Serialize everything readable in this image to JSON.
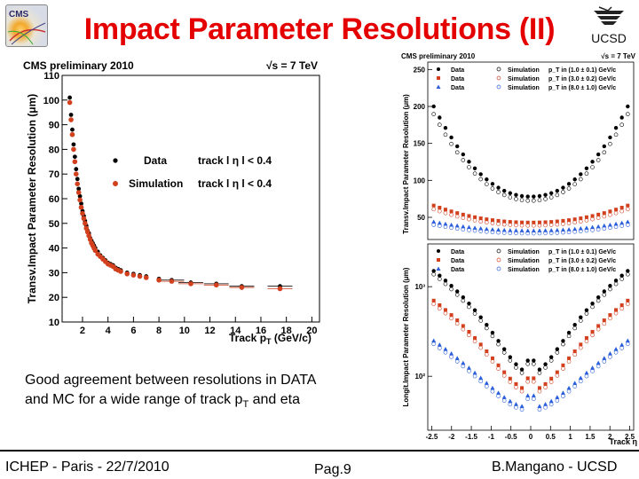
{
  "slide": {
    "title": "Impact Parameter Resolutions (II)",
    "caption_line1": "Good agreement between resolutions in DATA",
    "caption_line2_pre": "and MC for a wide range of track p",
    "caption_line2_sub": "T",
    "caption_line2_post": " and eta",
    "footer_left": "ICHEP - Paris - 22/7/2010",
    "footer_center": "Pag.9",
    "footer_right": "B.Mangano - UCSD",
    "logo_right_text": "UCSD",
    "logo_left_text": "CMS"
  },
  "chart_data": [
    {
      "type": "scatter",
      "title": "CMS preliminary 2010",
      "energy_label": "√s = 7 TeV",
      "xlabel": "Track p",
      "xlabel_sub": "T",
      "xlabel_unit": "(GeV/c)",
      "ylabel": "Transv.Impact Parameter Resolution (μm)",
      "xlim": [
        0.4,
        20.6
      ],
      "ylim": [
        10,
        110
      ],
      "x_ticks": [
        2,
        4,
        6,
        8,
        10,
        12,
        14,
        16,
        18,
        20
      ],
      "y_ticks": [
        10,
        20,
        30,
        40,
        50,
        60,
        70,
        80,
        90,
        100,
        110
      ],
      "legend": [
        {
          "name": "Data",
          "cut": "track l η l < 0.4",
          "color": "#000000"
        },
        {
          "name": "Simulation",
          "cut": "track l η l < 0.4",
          "color": "#d2401e"
        }
      ],
      "series": [
        {
          "name": "Data",
          "color": "#000000",
          "x": [
            1.0,
            1.1,
            1.2,
            1.3,
            1.4,
            1.5,
            1.6,
            1.7,
            1.8,
            1.9,
            2.0,
            2.1,
            2.2,
            2.3,
            2.4,
            2.5,
            2.6,
            2.7,
            2.8,
            2.9,
            3.0,
            3.2,
            3.4,
            3.6,
            3.8,
            4.0,
            4.2,
            4.4,
            4.6,
            4.8,
            5.0,
            5.5,
            6.0,
            6.5,
            7.0,
            8.0,
            9.0,
            10.5,
            12.5,
            14.5,
            17.5
          ],
          "y": [
            101,
            94,
            88,
            82,
            77,
            72,
            68,
            64,
            61,
            58,
            55,
            53,
            51,
            49,
            47,
            46,
            44,
            43,
            42,
            41,
            40,
            38.5,
            37,
            36,
            35,
            34,
            33.5,
            33,
            32,
            31.5,
            31,
            30,
            29.5,
            29,
            28.5,
            27.5,
            27,
            26,
            25.5,
            24.5,
            24.5
          ]
        },
        {
          "name": "Simulation",
          "color": "#d2401e",
          "x": [
            1.0,
            1.1,
            1.2,
            1.3,
            1.4,
            1.5,
            1.6,
            1.7,
            1.8,
            1.9,
            2.0,
            2.1,
            2.2,
            2.3,
            2.4,
            2.5,
            2.6,
            2.7,
            2.8,
            2.9,
            3.0,
            3.2,
            3.4,
            3.6,
            3.8,
            4.0,
            4.2,
            4.4,
            4.6,
            4.8,
            5.0,
            5.5,
            6.0,
            6.5,
            7.0,
            8.0,
            9.0,
            10.5,
            12.5,
            14.5,
            17.5
          ],
          "y": [
            99,
            92,
            86,
            80,
            75,
            70,
            66,
            62.5,
            59.5,
            56.5,
            54,
            52,
            50,
            48,
            46.5,
            45,
            43.5,
            42,
            41,
            40,
            39,
            37.5,
            36.5,
            35.5,
            34.5,
            33.5,
            33,
            32.5,
            31.5,
            31,
            30.5,
            29.5,
            29,
            28.5,
            28,
            27,
            26.5,
            25.5,
            25,
            24,
            23.5
          ]
        }
      ]
    },
    {
      "type": "scatter",
      "title": "CMS preliminary 2010",
      "energy_label": "√s = 7 TeV",
      "ylabel": "Transv.Impact Parameter Resolution (μm)",
      "xlim": [
        -2.6,
        2.6
      ],
      "ylim": [
        20,
        260
      ],
      "y_ticks": [
        50,
        100,
        150,
        200,
        250
      ],
      "legend": [
        {
          "name": "Data",
          "sim": "Simulation",
          "cut": "p_T in (1.0 ± 0.1) GeV/c",
          "color": "#000000"
        },
        {
          "name": "Data",
          "sim": "Simulation",
          "cut": "p_T in (3.0 ± 0.2) GeV/c",
          "color": "#d2401e"
        },
        {
          "name": "Data",
          "sim": "Simulation",
          "cut": "p_T in (8.0 ± 1.0) GeV/c",
          "color": "#2b5fd9"
        }
      ],
      "series": [
        {
          "name": "Data",
          "pt_bin": "p_T in (1.0 ± 0.1) GeV/c",
          "color": "#000000",
          "x_min": -2.45,
          "x_max": 2.45,
          "n": 34,
          "y_center": 78,
          "y_edge": 200
        },
        {
          "name": "Data",
          "pt_bin": "p_T in (3.0 ± 0.2) GeV/c",
          "color": "#d2401e",
          "x_min": -2.45,
          "x_max": 2.45,
          "n": 34,
          "y_center": 43,
          "y_edge": 66
        },
        {
          "name": "Data",
          "pt_bin": "p_T in (8.0 ± 1.0) GeV/c",
          "color": "#2b5fd9",
          "x_min": -2.45,
          "x_max": 2.45,
          "n": 34,
          "y_center": 32,
          "y_edge": 44
        }
      ]
    },
    {
      "type": "scatter",
      "xlabel": "Track η",
      "ylabel": "Longit.Impact Parameter Resolution (μm)",
      "xlim": [
        -2.6,
        2.6
      ],
      "y_scale": "log",
      "x_ticks": [
        -2.5,
        -2,
        -1.5,
        -1,
        -0.5,
        0,
        0.5,
        1,
        1.5,
        2,
        2.5
      ],
      "x_tick_labels": [
        "-2.5",
        "-2",
        "-1.5",
        "-1",
        "-0.5",
        "0",
        "0.5",
        "1",
        "1.5",
        "2",
        "2.5"
      ],
      "y_tick_labels": [
        "10³",
        "10²"
      ],
      "legend": [
        {
          "name": "Data",
          "sim": "Simulation",
          "cut": "p_T in (1.0 ± 0.1) GeV/c",
          "color": "#000000"
        },
        {
          "name": "Data",
          "sim": "Simulation",
          "cut": "p_T in (3.0 ± 0.2) GeV/c",
          "color": "#d2401e"
        },
        {
          "name": "Data",
          "sim": "Simulation",
          "cut": "p_T in (8.0 ± 1.0) GeV/c",
          "color": "#2b5fd9"
        }
      ],
      "series": [
        {
          "name": "Data",
          "pt_bin": "p_T in (1.0 ± 0.1) GeV/c",
          "color": "#000000",
          "x_min": -2.45,
          "x_max": 2.45,
          "n": 34,
          "y_center": 110,
          "y_edge": 1500
        },
        {
          "name": "Data",
          "pt_bin": "p_T in (3.0 ± 0.2) GeV/c",
          "color": "#d2401e",
          "x_min": -2.45,
          "x_max": 2.45,
          "n": 34,
          "y_center": 70,
          "y_edge": 700
        },
        {
          "name": "Data",
          "pt_bin": "p_T in (8.0 ± 1.0) GeV/c",
          "color": "#2b5fd9",
          "x_min": -2.45,
          "x_max": 2.45,
          "n": 34,
          "y_center": 45,
          "y_edge": 250
        }
      ]
    }
  ]
}
